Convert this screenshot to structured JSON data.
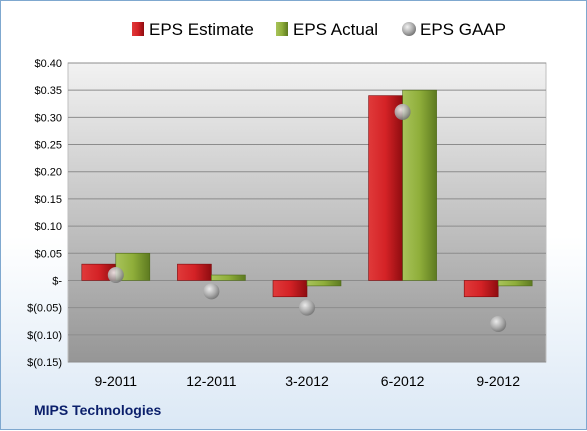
{
  "company": "MIPS Technologies",
  "chart_data": {
    "type": "bar",
    "categories": [
      "9-2011",
      "12-2011",
      "3-2012",
      "6-2012",
      "9-2012"
    ],
    "series": [
      {
        "name": "EPS Estimate",
        "type": "bar",
        "color": "#c0141c",
        "values": [
          0.03,
          0.03,
          -0.03,
          0.34,
          -0.03
        ]
      },
      {
        "name": "EPS Actual",
        "type": "bar",
        "color": "#8fae3a",
        "values": [
          0.05,
          0.01,
          -0.01,
          0.35,
          -0.01
        ]
      },
      {
        "name": "EPS GAAP",
        "type": "marker",
        "color": "#a6a6a6",
        "values": [
          0.01,
          -0.02,
          -0.05,
          0.31,
          -0.08
        ]
      }
    ],
    "ylim": [
      -0.15,
      0.4
    ],
    "yticks": [
      0.4,
      0.35,
      0.3,
      0.25,
      0.2,
      0.15,
      0.1,
      0.05,
      0,
      -0.05,
      -0.1,
      -0.15
    ],
    "ytick_labels": [
      "$0.40",
      "$0.35",
      "$0.30",
      "$0.25",
      "$0.20",
      "$0.15",
      "$0.10",
      "$0.05",
      "$-",
      "$(0.05)",
      "$(0.10)",
      "$(0.15)"
    ],
    "legend_position": "top",
    "grid": true
  }
}
